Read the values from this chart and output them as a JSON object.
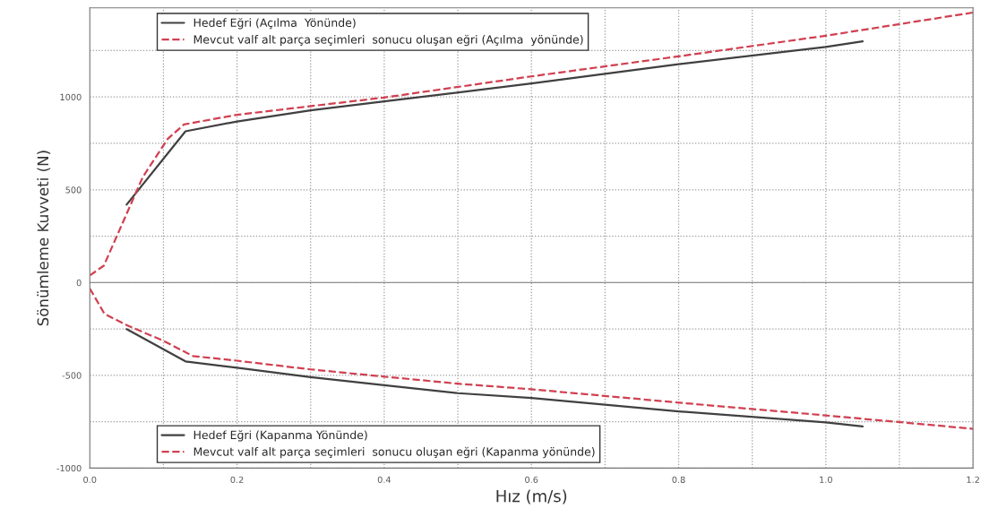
{
  "chart_data": {
    "type": "line",
    "xlabel": "Hız (m/s)",
    "ylabel": "Sönümleme Kuvveti (N)",
    "xlim": [
      0,
      1.2
    ],
    "ylim": [
      -1000,
      1480
    ],
    "xticks": [
      {
        "value": 0,
        "label": "0.0"
      },
      {
        "value": 0.1,
        "label": null
      },
      {
        "value": 0.2,
        "label": "0.2"
      },
      {
        "value": 0.3,
        "label": null
      },
      {
        "value": 0.4,
        "label": "0.4"
      },
      {
        "value": 0.5,
        "label": null
      },
      {
        "value": 0.6,
        "label": "0.6"
      },
      {
        "value": 0.7,
        "label": null
      },
      {
        "value": 0.8,
        "label": "0.8"
      },
      {
        "value": 0.9,
        "label": null
      },
      {
        "value": 1.0,
        "label": "1.0"
      },
      {
        "value": 1.1,
        "label": null
      },
      {
        "value": 1.2,
        "label": "1.2"
      }
    ],
    "yticks": [
      -1000,
      {
        "value": -750,
        "label": null
      },
      -500,
      {
        "value": -250,
        "label": null
      },
      0,
      {
        "value": 250,
        "label": null
      },
      500,
      {
        "value": 750,
        "label": null
      },
      1000,
      {
        "value": 1250,
        "label": null
      }
    ],
    "grid": true,
    "legend": "left",
    "marker": "none",
    "ref_lines": [
      {
        "axis": "y",
        "value": 0,
        "color": "#909090",
        "line_style": "solid"
      }
    ],
    "series": [
      {
        "name": "Hedef Eğri (Açılma  Yönünde)",
        "color": "#404040",
        "line_style": "solid",
        "x": [
          0.05,
          0.13,
          0.2,
          0.3,
          0.4,
          0.6,
          0.8,
          1.0,
          1.05
        ],
        "values": [
          420,
          815,
          868,
          928,
          976,
          1073,
          1177,
          1270,
          1300
        ]
      },
      {
        "name": "Mevcut valf alt parça seçimleri  sonucu oluşan eğri (Açılma  yönünde)",
        "color": "#d04050",
        "line_style": "dashed",
        "x": [
          0.0,
          0.019,
          0.04,
          0.072,
          0.106,
          0.128,
          0.2,
          0.4,
          0.6,
          0.8,
          1.0,
          1.2
        ],
        "values": [
          38,
          91,
          280,
          569,
          775,
          852,
          904,
          997,
          1111,
          1219,
          1330,
          1455
        ]
      },
      {
        "name": "Hedef Eğri (Kapanma Yönünde)",
        "color": "#404040",
        "line_style": "solid",
        "x": [
          0.05,
          0.13,
          0.2,
          0.3,
          0.4,
          0.5,
          0.6,
          0.8,
          1.0,
          1.05
        ],
        "values": [
          -251,
          -425,
          -459,
          -510,
          -553,
          -596,
          -622,
          -694,
          -753,
          -775
        ]
      },
      {
        "name": "Mevcut valf alt parça seçimleri  sonucu oluşan eğri (Kapanma yönünde)",
        "color": "#d04050",
        "line_style": "dashed",
        "x": [
          0.0,
          0.02,
          0.05,
          0.1,
          0.14,
          0.2,
          0.3,
          0.4,
          0.5,
          0.6,
          0.8,
          1.0,
          1.2
        ],
        "values": [
          -32,
          -169,
          -229,
          -314,
          -396,
          -421,
          -468,
          -507,
          -545,
          -575,
          -647,
          -716,
          -788
        ]
      }
    ]
  }
}
